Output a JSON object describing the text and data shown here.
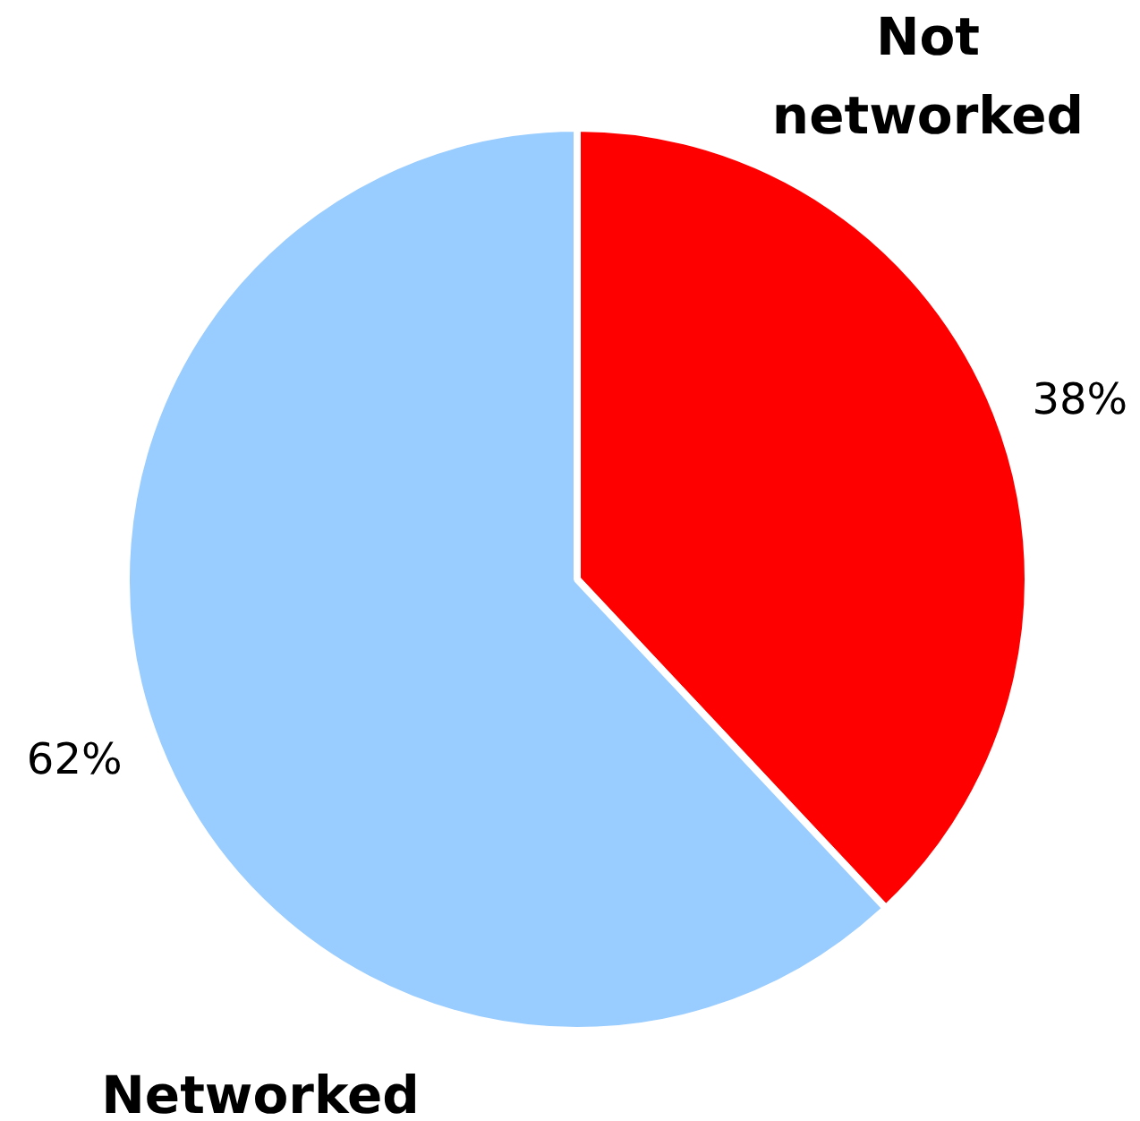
{
  "chart_data": {
    "type": "pie",
    "categories": [
      "Not networked",
      "Networked"
    ],
    "values": [
      38,
      62
    ],
    "colors": [
      "#ff0000",
      "#99ccff"
    ],
    "value_labels": [
      "38%",
      "62%"
    ]
  }
}
